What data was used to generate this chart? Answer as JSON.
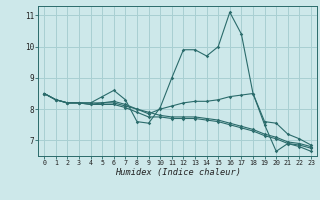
{
  "xlabel": "Humidex (Indice chaleur)",
  "bg_color": "#cde8ea",
  "grid_color": "#a8cfd2",
  "line_color": "#2a6b6b",
  "xlim": [
    -0.5,
    23.5
  ],
  "ylim": [
    6.5,
    11.3
  ],
  "yticks": [
    7,
    8,
    9,
    10,
    11
  ],
  "xticks": [
    0,
    1,
    2,
    3,
    4,
    5,
    6,
    7,
    8,
    9,
    10,
    11,
    12,
    13,
    14,
    15,
    16,
    17,
    18,
    19,
    20,
    21,
    22,
    23
  ],
  "series": [
    [
      8.5,
      8.3,
      8.2,
      8.2,
      8.2,
      8.4,
      8.6,
      8.3,
      7.6,
      7.55,
      8.05,
      9.0,
      9.9,
      9.9,
      9.7,
      10.0,
      11.1,
      10.4,
      8.5,
      7.5,
      6.65,
      6.9,
      6.8,
      6.65
    ],
    [
      8.5,
      8.3,
      8.2,
      8.2,
      8.15,
      8.15,
      8.15,
      8.05,
      7.9,
      7.75,
      7.75,
      7.7,
      7.7,
      7.7,
      7.65,
      7.6,
      7.5,
      7.4,
      7.3,
      7.15,
      7.05,
      6.9,
      6.85,
      6.75
    ],
    [
      8.5,
      8.3,
      8.2,
      8.2,
      8.15,
      8.2,
      8.25,
      8.15,
      8.0,
      7.85,
      8.0,
      8.1,
      8.2,
      8.25,
      8.25,
      8.3,
      8.4,
      8.45,
      8.5,
      7.6,
      7.55,
      7.2,
      7.05,
      6.85
    ],
    [
      8.5,
      8.3,
      8.2,
      8.2,
      8.2,
      8.2,
      8.2,
      8.1,
      8.0,
      7.9,
      7.8,
      7.75,
      7.75,
      7.75,
      7.7,
      7.65,
      7.55,
      7.45,
      7.35,
      7.2,
      7.1,
      6.95,
      6.9,
      6.8
    ]
  ]
}
